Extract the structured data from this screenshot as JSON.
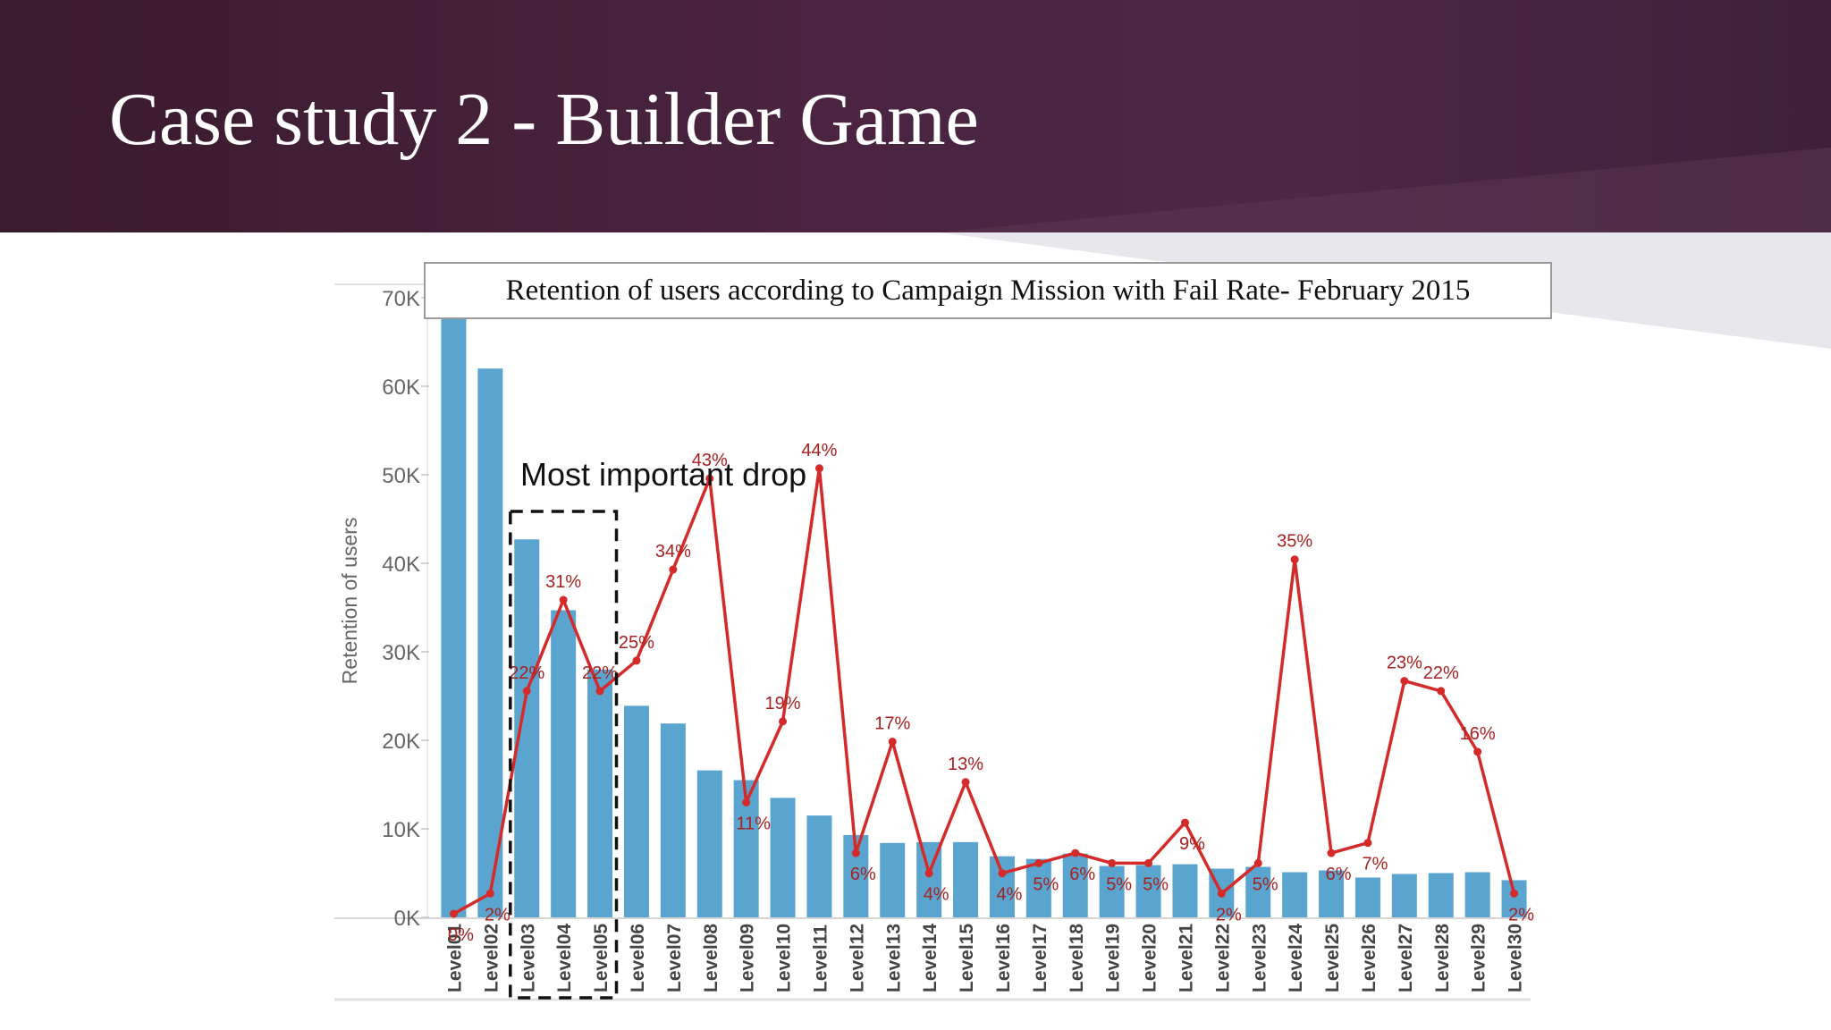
{
  "slide": {
    "title": "Case study 2 - Builder Game"
  },
  "colors": {
    "header": "#4a2440",
    "bar": "#5aa5cf",
    "line": "#d42a2a",
    "label": "#a8201f",
    "axis_text": "#666666"
  },
  "chart_data": {
    "type": "bar+line",
    "title": "Retention of users according to Campaign Mission with Fail Rate- February 2015",
    "ylabel": "Retention of users",
    "xlabel": "",
    "ylim": [
      0,
      70000
    ],
    "y_ticks": [
      {
        "value": 0,
        "label": "0K"
      },
      {
        "value": 10000,
        "label": "10K"
      },
      {
        "value": 20000,
        "label": "20K"
      },
      {
        "value": 30000,
        "label": "30K"
      },
      {
        "value": 40000,
        "label": "40K"
      },
      {
        "value": 50000,
        "label": "50K"
      },
      {
        "value": 60000,
        "label": "60K"
      },
      {
        "value": 70000,
        "label": "70K"
      }
    ],
    "categories": [
      "Level01",
      "Level02",
      "Level03",
      "Level04",
      "Level05",
      "Level06",
      "Level07",
      "Level08",
      "Level09",
      "Level10",
      "Level11",
      "Level12",
      "Level13",
      "Level14",
      "Level15",
      "Level16",
      "Level17",
      "Level18",
      "Level19",
      "Level20",
      "Level21",
      "Level22",
      "Level23",
      "Level24",
      "Level25",
      "Level26",
      "Level27",
      "Level28",
      "Level29",
      "Level30"
    ],
    "series": [
      {
        "kind": "bar",
        "name": "Retention of users",
        "values": [
          70000,
          62000,
          42700,
          34700,
          28000,
          23900,
          21900,
          16600,
          15500,
          13500,
          11500,
          9300,
          8400,
          8500,
          8500,
          6900,
          6600,
          7200,
          5800,
          5900,
          6000,
          5500,
          5700,
          5100,
          5300,
          4500,
          4900,
          5000,
          5100,
          4200
        ]
      },
      {
        "kind": "line",
        "name": "Fail Rate",
        "values": [
          0,
          2,
          22,
          31,
          22,
          25,
          34,
          43,
          11,
          19,
          44,
          6,
          17,
          4,
          13,
          4,
          5,
          6,
          5,
          5,
          9,
          2,
          5,
          35,
          6,
          7,
          23,
          22,
          16,
          2
        ],
        "labels": [
          "0%",
          "2%",
          "22%",
          "31%",
          "22%",
          "25%",
          "34%",
          "43%",
          "11%",
          "19%",
          "44%",
          "6%",
          "17%",
          "4%",
          "13%",
          "4%",
          "5%",
          "6%",
          "5%",
          "5%",
          "9%",
          "2%",
          "5%",
          "35%",
          "6%",
          "7%",
          "23%",
          "22%",
          "16%",
          "2%"
        ]
      }
    ],
    "annotation": {
      "text": "Most important drop",
      "categories": [
        "Level03",
        "Level05"
      ]
    }
  }
}
